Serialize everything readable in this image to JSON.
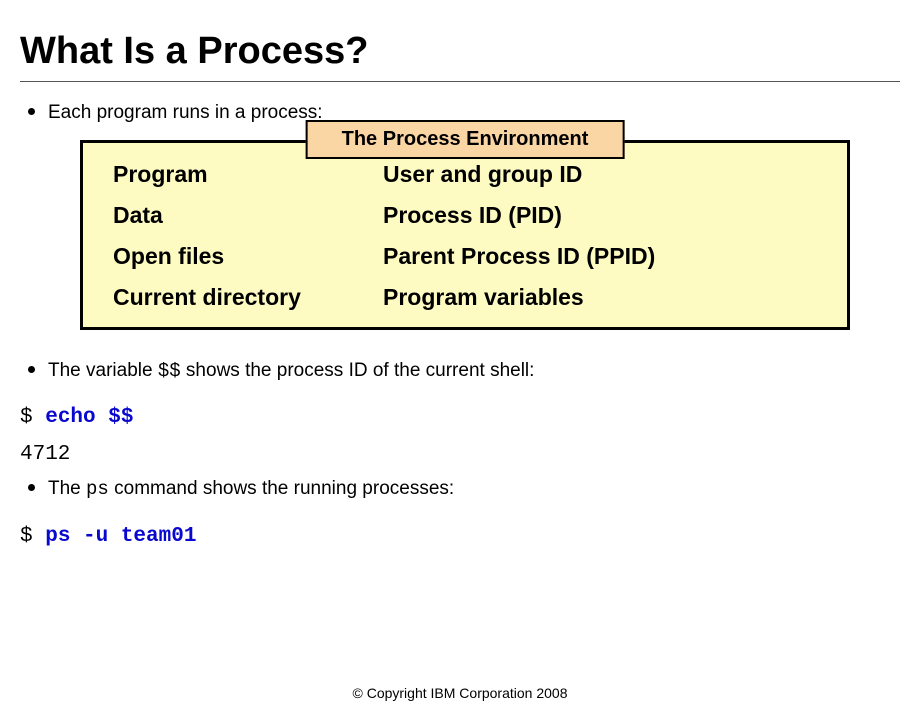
{
  "slide": {
    "title": "What Is a Process?",
    "bullets": {
      "b1": "Each program runs in a process:",
      "b2_pre": "The variable ",
      "b2_code": "$$",
      "b2_post": " shows the process ID of the current shell:",
      "b3_pre": "The ",
      "b3_code": "ps",
      "b3_post": " command shows the running processes:"
    },
    "diagram": {
      "header": "The Process Environment",
      "background_color": "#fdfac2",
      "header_color": "#fbd6a5",
      "border_color": "#000000",
      "rows": {
        "r0c0": "Program",
        "r0c1": "User and group ID",
        "r1c0": "Data",
        "r1c1": "Process ID (PID)",
        "r2c0": "Open files",
        "r2c1": "Parent Process ID (PPID)",
        "r3c0": "Current directory",
        "r3c1": "Program variables"
      }
    },
    "code1": {
      "prompt": "$ ",
      "command": "echo $$",
      "output": "4712"
    },
    "code2": {
      "prompt": "$ ",
      "command": "ps -u team01"
    },
    "copyright": "© Copyright IBM Corporation 2008"
  }
}
